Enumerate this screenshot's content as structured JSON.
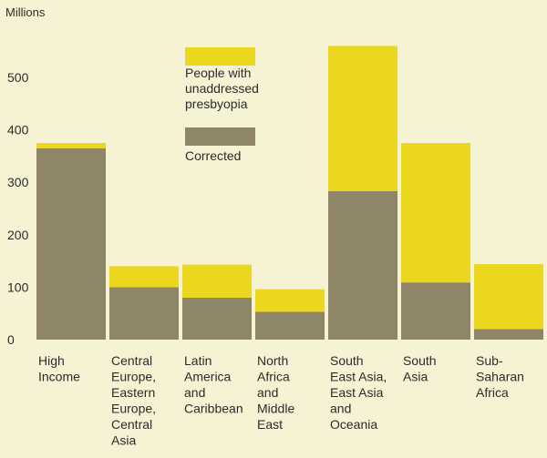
{
  "chart_data": {
    "type": "bar",
    "stacked": true,
    "unit_label": "Millions",
    "yticks": [
      0,
      100,
      200,
      300,
      400,
      500
    ],
    "ylim": [
      0,
      600
    ],
    "grid": false,
    "categories": [
      [
        "High",
        "Income"
      ],
      [
        "Central",
        "Europe,",
        "Eastern",
        "Europe,",
        "Central",
        "Asia"
      ],
      [
        "Latin",
        "America",
        "and",
        "Caribbean"
      ],
      [
        "North",
        "Africa",
        "and",
        "Middle",
        "East"
      ],
      [
        "South",
        "East Asia,",
        "East Asia",
        "and",
        "Oceania"
      ],
      [
        "South",
        "Asia"
      ],
      [
        "Sub-",
        "Saharan",
        "Africa"
      ]
    ],
    "series": [
      {
        "name": "Corrected",
        "color": "#8f8568",
        "values": [
          365,
          100,
          80,
          53,
          283,
          109,
          20
        ]
      },
      {
        "name": "People with unaddressed presbyopia",
        "name_lines": [
          {
            "text": "People with",
            "color": "#2b2b2b"
          },
          {
            "text": "unaddressed",
            "color": "#2b2b2b"
          },
          {
            "text": "presbyopia",
            "color": "#c9a227"
          }
        ],
        "color": "#ecd71f",
        "values": [
          10,
          40,
          63,
          43,
          277,
          266,
          124
        ]
      }
    ],
    "legend": {
      "placement": "top-center"
    }
  }
}
